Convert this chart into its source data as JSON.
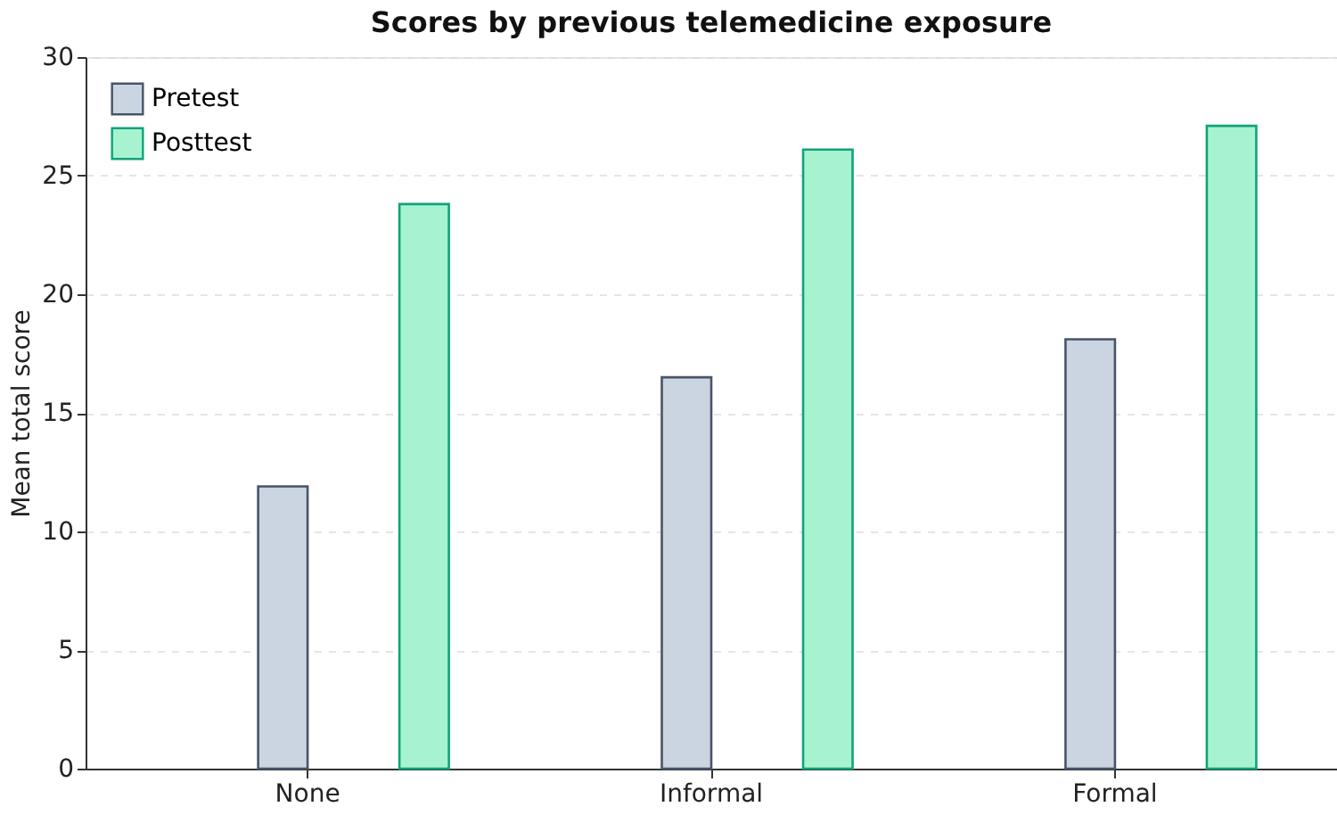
{
  "chart_data": {
    "type": "bar",
    "title": "Scores by previous telemedicine exposure",
    "ylabel": "Mean total score",
    "categories": [
      "None",
      "Informal",
      "Formal"
    ],
    "series": [
      {
        "name": "Pretest",
        "color": "#cbd5e1",
        "values": [
          11.9,
          16.5,
          18.1
        ]
      },
      {
        "name": "Posttest",
        "color": "#a7f3d0",
        "values": [
          23.8,
          26.1,
          27.1
        ]
      }
    ],
    "ylim": [
      0,
      30
    ],
    "yticks": [
      0,
      5,
      10,
      15,
      20,
      25,
      30
    ],
    "grid": "y",
    "legend": "top left"
  }
}
